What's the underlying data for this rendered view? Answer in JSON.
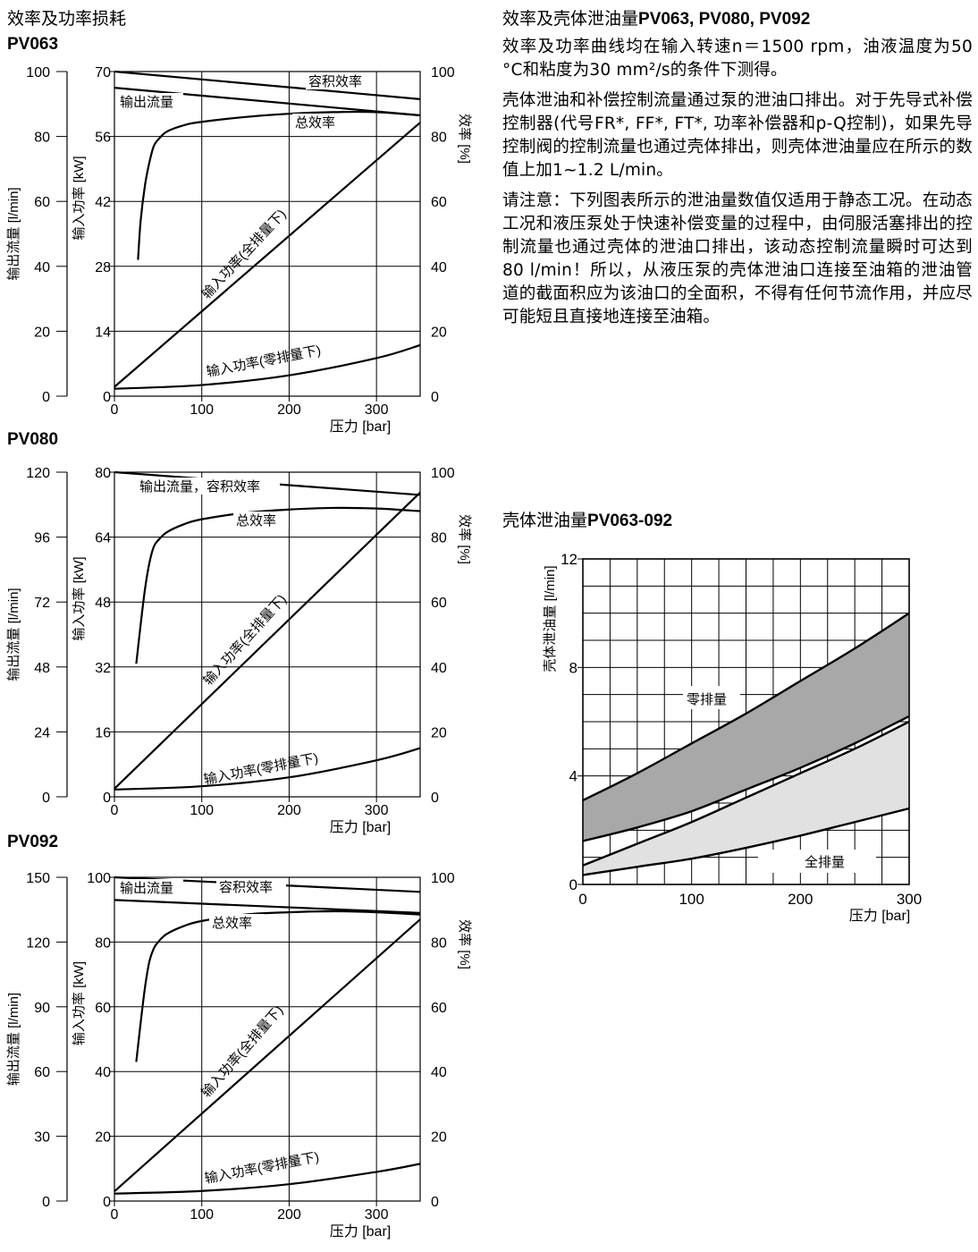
{
  "left": {
    "heading": "效率及功率损耗"
  },
  "right": {
    "heading_main": "效率及壳体泄油量",
    "heading_models": "PV063, PV080, PV092",
    "paragraphs": [
      "效率及功率曲线均在输入转速n＝1500 rpm，油液温度为50 °C和粘度为30 mm²/s的条件下测得。",
      "壳体泄油和补偿控制流量通过泵的泄油口排出。对于先导式补偿控制器(代号FR*, FF*, FT*, 功率补偿器和p-Q控制)，如果先导控制阀的控制流量也通过壳体排出，则壳体泄油量应在所示的数值上加1~1.2 L/min。",
      "请注意：下列图表所示的泄油量数值仅适用于静态工况。在动态工况和液压泵处于快速补偿变量的过程中，由伺服活塞排出的控制流量也通过壳体的泄油口排出，该动态控制流量瞬时可达到80 l/min！所以，从液压泵的壳体泄油口连接至油箱的泄油管道的截面积应为该油口的全面积，不得有任何节流作用，并应尽可能短且直接地连接至油箱。"
    ],
    "leak_heading_main": "壳体泄油量",
    "leak_heading_model": "PV063-092"
  },
  "chart_data": [
    {
      "type": "line",
      "title": "PV063",
      "xlabel": "压力 [bar]",
      "x_ticks": [
        "0",
        "100",
        "200",
        "300"
      ],
      "xlim": [
        0,
        350
      ],
      "y_axes": [
        {
          "label": "输出流量 [l/min]",
          "ticks": [
            "0",
            "20",
            "40",
            "60",
            "80",
            "100"
          ],
          "lim": [
            0,
            100
          ]
        },
        {
          "label": "输入功率 [kW]",
          "ticks": [
            "0",
            "14",
            "28",
            "42",
            "56",
            "70"
          ],
          "lim": [
            0,
            70
          ]
        },
        {
          "label": "效率 [%]",
          "ticks": [
            "0",
            "20",
            "40",
            "60",
            "80",
            "100"
          ],
          "lim": [
            0,
            100
          ]
        }
      ],
      "series": [
        {
          "name": "容积效率",
          "axis": "效率 [%]",
          "x": [
            0,
            350
          ],
          "y": [
            100,
            91.5
          ]
        },
        {
          "name": "输出流量",
          "axis": "输出流量 [l/min]",
          "x": [
            0,
            350
          ],
          "y": [
            95,
            86.5
          ]
        },
        {
          "name": "总效率",
          "axis": "效率 [%]",
          "x": [
            27,
            30,
            35,
            40,
            45,
            50,
            60,
            80,
            100,
            150,
            200,
            250,
            300,
            350
          ],
          "y": [
            42,
            54,
            65,
            72,
            77,
            79,
            81.5,
            83.5,
            84.5,
            86,
            87,
            87.5,
            87.5,
            86.5
          ]
        },
        {
          "name": "输入功率(全排量下)",
          "axis": "输入功率 [kW]",
          "x": [
            0,
            350
          ],
          "y": [
            2,
            59
          ]
        },
        {
          "name": "输入功率(零排量下)",
          "axis": "输入功率 [kW]",
          "x": [
            0,
            100,
            200,
            300,
            350
          ],
          "y": [
            1.6,
            2.4,
            4.5,
            8.2,
            11
          ]
        }
      ]
    },
    {
      "type": "line",
      "title": "PV080",
      "xlabel": "压力 [bar]",
      "x_ticks": [
        "0",
        "100",
        "200",
        "300"
      ],
      "xlim": [
        0,
        350
      ],
      "y_axes": [
        {
          "label": "输出流量 [l/min]",
          "ticks": [
            "0",
            "24",
            "48",
            "72",
            "96",
            "120"
          ],
          "lim": [
            0,
            120
          ]
        },
        {
          "label": "输入功率 [kW]",
          "ticks": [
            "0",
            "16",
            "32",
            "48",
            "64",
            "80"
          ],
          "lim": [
            0,
            80
          ]
        },
        {
          "label": "效率 [%]",
          "ticks": [
            "0",
            "20",
            "40",
            "60",
            "80",
            "100"
          ],
          "lim": [
            0,
            100
          ]
        }
      ],
      "series": [
        {
          "name": "输出流量，容积效率",
          "axis": "效率 [%]",
          "x": [
            0,
            350
          ],
          "y": [
            100,
            93
          ]
        },
        {
          "name": "总效率",
          "axis": "效率 [%]",
          "x": [
            25,
            30,
            35,
            40,
            45,
            50,
            60,
            80,
            100,
            150,
            200,
            250,
            300,
            350
          ],
          "y": [
            41,
            53,
            64,
            72,
            77,
            79,
            81.5,
            84,
            85.5,
            87.5,
            88.5,
            89,
            88.8,
            88
          ]
        },
        {
          "name": "输入功率(全排量下)",
          "axis": "输入功率 [kW]",
          "x": [
            0,
            350
          ],
          "y": [
            2,
            75
          ]
        },
        {
          "name": "输入功率(零排量下)",
          "axis": "输入功率 [kW]",
          "x": [
            0,
            100,
            200,
            300,
            350
          ],
          "y": [
            1.8,
            2.6,
            4.8,
            9,
            12
          ]
        }
      ]
    },
    {
      "type": "line",
      "title": "PV092",
      "xlabel": "压力 [bar]",
      "x_ticks": [
        "0",
        "100",
        "200",
        "300"
      ],
      "xlim": [
        0,
        350
      ],
      "y_axes": [
        {
          "label": "输出流量 [l/min]",
          "ticks": [
            "0",
            "30",
            "60",
            "90",
            "120",
            "150"
          ],
          "lim": [
            0,
            150
          ]
        },
        {
          "label": "输入功率 [kW]",
          "ticks": [
            "0",
            "20",
            "40",
            "60",
            "80",
            "100"
          ],
          "lim": [
            0,
            100
          ]
        },
        {
          "label": "效率 [%]",
          "ticks": [
            "0",
            "20",
            "40",
            "60",
            "80",
            "100"
          ],
          "lim": [
            0,
            100
          ]
        }
      ],
      "series": [
        {
          "name": "容积效率",
          "axis": "效率 [%]",
          "x": [
            0,
            350
          ],
          "y": [
            100,
            95.5
          ]
        },
        {
          "name": "输出流量",
          "axis": "效率 [%]",
          "x": [
            0,
            350
          ],
          "y": [
            93,
            89
          ]
        },
        {
          "name": "总效率",
          "axis": "效率 [%]",
          "x": [
            25,
            30,
            35,
            40,
            45,
            50,
            60,
            80,
            100,
            150,
            200,
            250,
            300,
            350
          ],
          "y": [
            43,
            55,
            66,
            74,
            78,
            80,
            82.5,
            85,
            86.5,
            88.5,
            89.2,
            89.5,
            89.2,
            88.5
          ]
        },
        {
          "name": "输入功率(全排量下)",
          "axis": "输入功率 [kW]",
          "x": [
            0,
            350
          ],
          "y": [
            3,
            87
          ]
        },
        {
          "name": "输入功率(零排量下)",
          "axis": "输入功率 [kW]",
          "x": [
            0,
            100,
            200,
            300,
            350
          ],
          "y": [
            2.3,
            3.1,
            5.2,
            9,
            11.5
          ]
        }
      ]
    },
    {
      "type": "area",
      "title": "壳体泄油量PV063-092",
      "xlabel": "压力 [bar]",
      "ylabel": "壳体泄油量 [l/min]",
      "x_ticks": [
        "0",
        "100",
        "200",
        "300"
      ],
      "y_ticks": [
        "0",
        "4",
        "8",
        "12"
      ],
      "xlim": [
        0,
        300
      ],
      "ylim": [
        0,
        12
      ],
      "grid": true,
      "series": [
        {
          "name": "零排量",
          "x": [
            0,
            50,
            100,
            150,
            200,
            250,
            300
          ],
          "upper": [
            3.1,
            4.1,
            5.2,
            6.3,
            7.5,
            8.7,
            10
          ],
          "lower": [
            1.6,
            2.1,
            2.7,
            3.5,
            4.3,
            5.2,
            6.2
          ]
        },
        {
          "name": "全排量",
          "x": [
            0,
            50,
            100,
            150,
            200,
            250,
            300
          ],
          "upper": [
            0.7,
            1.5,
            2.3,
            3.2,
            4.1,
            5.0,
            6.0
          ],
          "lower": [
            0.35,
            0.65,
            0.95,
            1.35,
            1.8,
            2.3,
            2.8
          ]
        }
      ]
    }
  ]
}
